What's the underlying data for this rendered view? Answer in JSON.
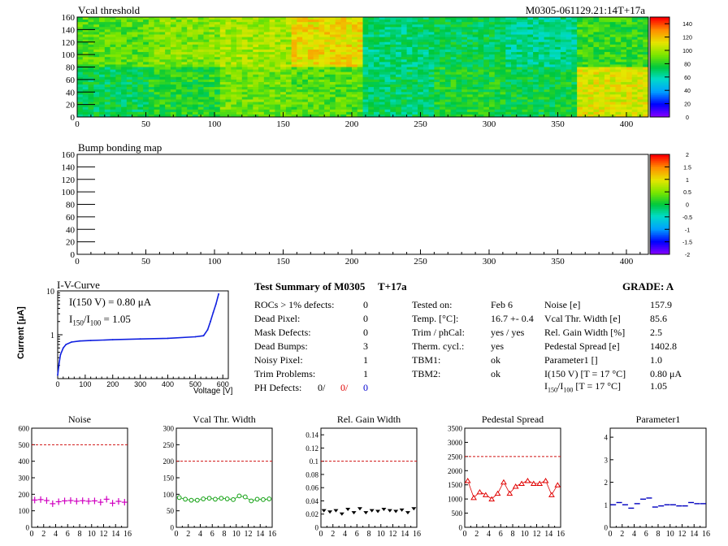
{
  "header": {
    "title_left": "Vcal threshold",
    "title_right": "M0305-061129.21:14T+17a"
  },
  "map2_title": "Bump bonding map",
  "map_axes": {
    "x_ticks": [
      "0",
      "50",
      "100",
      "150",
      "200",
      "250",
      "300",
      "350",
      "400"
    ],
    "y_ticks": [
      "0",
      "20",
      "40",
      "60",
      "80",
      "100",
      "120",
      "140",
      "160"
    ]
  },
  "colorbar1_ticks": [
    "0",
    "20",
    "40",
    "60",
    "80",
    "100",
    "120",
    "140"
  ],
  "colorbar2_ticks": [
    "-2",
    "-1.5",
    "-1",
    "-0.5",
    "0",
    "0.5",
    "1",
    "1.5",
    "2"
  ],
  "iv": {
    "title": "I-V-Curve",
    "ylabel": "Current [μA]",
    "xlabel": "Voltage [V]",
    "i150": "I(150 V) = 0.80 μA",
    "ratio_prefix": "I",
    "ratio_sub1": "150",
    "ratio_mid": "/I",
    "ratio_sub2": "100",
    "ratio_value": " =  1.05",
    "x_ticks": [
      "0",
      "100",
      "200",
      "300",
      "400",
      "500",
      "600"
    ],
    "y_ticks": [
      "1",
      "10"
    ]
  },
  "summary": {
    "title": "Test Summary of M0305",
    "temp_tag": "T+17a",
    "grade": "GRADE:  A",
    "col1": [
      {
        "label": "ROCs > 1% defects:",
        "value": "0"
      },
      {
        "label": "Dead Pixel:",
        "value": "0"
      },
      {
        "label": "Mask Defects:",
        "value": "0"
      },
      {
        "label": "Dead Bumps:",
        "value": "3"
      },
      {
        "label": "Noisy Pixel:",
        "value": "1"
      },
      {
        "label": "Trim Problems:",
        "value": "1"
      }
    ],
    "ph_label": "PH Defects:",
    "ph_values": [
      "0/",
      "0/",
      "0"
    ],
    "col2": [
      {
        "label": "Tested on:",
        "value": "Feb 6"
      },
      {
        "label": "Temp. [°C]:",
        "value": "16.7 +- 0.4"
      },
      {
        "label": "Trim / phCal:",
        "value": "yes / yes"
      },
      {
        "label": "Therm. cycl.:",
        "value": "yes"
      },
      {
        "label": "TBM1:",
        "value": "ok"
      },
      {
        "label": "TBM2:",
        "value": "ok"
      }
    ],
    "col3": [
      {
        "label": "Noise [e]",
        "value": "157.9"
      },
      {
        "label": "Vcal Thr. Width [e]",
        "value": "85.6"
      },
      {
        "label": "Rel. Gain Width [%]",
        "value": "2.5"
      },
      {
        "label": "Pedestal Spread [e]",
        "value": "1402.8"
      },
      {
        "label": "Parameter1 []",
        "value": "1.0"
      },
      {
        "label": "I(150 V) [T = 17 °C]",
        "value": "0.80 μA"
      }
    ],
    "ratio_row": {
      "prefix": "I",
      "sub1": "150",
      "mid": "/I",
      "sub2": "100",
      "rest": "  [T = 17 °C]",
      "value": "1.05"
    }
  },
  "chart_data": [
    {
      "type": "heatmap",
      "title": "Vcal threshold",
      "xlim": [
        0,
        416
      ],
      "ylim": [
        0,
        160
      ],
      "zlim": [
        0,
        150
      ],
      "colorbar_ticks": [
        0,
        20,
        40,
        60,
        80,
        100,
        120,
        140
      ],
      "roc_means_top": [
        88,
        95,
        100,
        115,
        68,
        72,
        65,
        82
      ],
      "roc_means_bottom": [
        72,
        80,
        92,
        88,
        70,
        78,
        75,
        110
      ]
    },
    {
      "type": "heatmap",
      "title": "Bump bonding map",
      "xlim": [
        0,
        416
      ],
      "ylim": [
        0,
        160
      ],
      "zlim": [
        -2,
        2
      ],
      "colorbar_ticks": [
        -2,
        -1.5,
        -1,
        -0.5,
        0,
        0.5,
        1,
        1.5,
        2
      ]
    },
    {
      "type": "line",
      "title": "I-V-Curve",
      "xlabel": "Voltage [V]",
      "ylabel": "Current [μA]",
      "log_y": true,
      "xlim": [
        0,
        620
      ],
      "ylim": [
        0.1,
        10
      ],
      "x": [
        0,
        5,
        10,
        20,
        30,
        50,
        80,
        120,
        200,
        300,
        400,
        500,
        530,
        545,
        555,
        565,
        575,
        585
      ],
      "y": [
        0.12,
        0.22,
        0.35,
        0.5,
        0.6,
        0.68,
        0.72,
        0.74,
        0.77,
        0.8,
        0.83,
        0.9,
        0.95,
        1.3,
        2.0,
        3.2,
        5.0,
        8.5
      ]
    },
    {
      "type": "scatter",
      "title": "Noise",
      "xlim": [
        0,
        16
      ],
      "ylim": [
        0,
        600
      ],
      "threshold": 500,
      "x": [
        0,
        1,
        2,
        3,
        4,
        5,
        6,
        7,
        8,
        9,
        10,
        11,
        12,
        13,
        14,
        15
      ],
      "values": [
        165,
        168,
        162,
        143,
        155,
        160,
        162,
        158,
        161,
        158,
        160,
        152,
        170,
        146,
        157,
        152
      ],
      "color": "#d000c0"
    },
    {
      "type": "scatter",
      "title": "Vcal Thr. Width",
      "xlim": [
        0,
        16
      ],
      "ylim": [
        0,
        300
      ],
      "threshold": 200,
      "x": [
        0,
        1,
        2,
        3,
        4,
        5,
        6,
        7,
        8,
        9,
        10,
        11,
        12,
        13,
        14,
        15
      ],
      "values": [
        90,
        85,
        82,
        82,
        86,
        88,
        85,
        88,
        86,
        84,
        95,
        92,
        80,
        85,
        84,
        86
      ],
      "color": "#10a010"
    },
    {
      "type": "scatter",
      "title": "Rel. Gain Width",
      "xlim": [
        0,
        16
      ],
      "ylim": [
        0,
        0.15
      ],
      "threshold": 0.1,
      "x": [
        0,
        1,
        2,
        3,
        4,
        5,
        6,
        7,
        8,
        9,
        10,
        11,
        12,
        13,
        14,
        15
      ],
      "values": [
        0.025,
        0.023,
        0.025,
        0.02,
        0.027,
        0.022,
        0.028,
        0.022,
        0.025,
        0.024,
        0.027,
        0.025,
        0.024,
        0.026,
        0.022,
        0.028
      ],
      "color": "#000000"
    },
    {
      "type": "scatter",
      "title": "Pedestal Spread",
      "xlim": [
        0,
        16
      ],
      "ylim": [
        0,
        3500
      ],
      "threshold": 2500,
      "x": [
        0,
        1,
        2,
        3,
        4,
        5,
        6,
        7,
        8,
        9,
        10,
        11,
        12,
        13,
        14,
        15
      ],
      "values": [
        1650,
        1050,
        1250,
        1150,
        1000,
        1200,
        1600,
        1200,
        1450,
        1550,
        1650,
        1550,
        1550,
        1650,
        1150,
        1500
      ],
      "color": "#e00000"
    },
    {
      "type": "scatter",
      "title": "Parameter1",
      "xlim": [
        0,
        16
      ],
      "ylim": [
        0,
        4.4
      ],
      "x": [
        0,
        1,
        2,
        3,
        4,
        5,
        6,
        7,
        8,
        9,
        10,
        11,
        12,
        13,
        14,
        15
      ],
      "values": [
        1.0,
        1.1,
        1.0,
        0.85,
        1.05,
        1.25,
        1.3,
        0.9,
        0.95,
        1.0,
        1.0,
        0.95,
        0.95,
        1.1,
        1.05,
        1.05
      ],
      "color": "#0000c0"
    }
  ],
  "small_titles": [
    "Noise",
    "Vcal Thr. Width",
    "Rel. Gain Width",
    "Pedestal Spread",
    "Parameter1"
  ],
  "small_x_ticks": [
    "0",
    "2",
    "4",
    "6",
    "8",
    "10",
    "12",
    "14",
    "16"
  ],
  "small_y_ticks": [
    [
      "0",
      "100",
      "200",
      "300",
      "400",
      "500",
      "600"
    ],
    [
      "0",
      "50",
      "100",
      "150",
      "200",
      "250",
      "300"
    ],
    [
      "0",
      "0.02",
      "0.04",
      "0.06",
      "0.08",
      "0.1",
      "0.12",
      "0.14"
    ],
    [
      "0",
      "500",
      "1000",
      "1500",
      "2000",
      "2500",
      "3000",
      "3500"
    ],
    [
      "0",
      "1",
      "2",
      "3",
      "4"
    ]
  ]
}
